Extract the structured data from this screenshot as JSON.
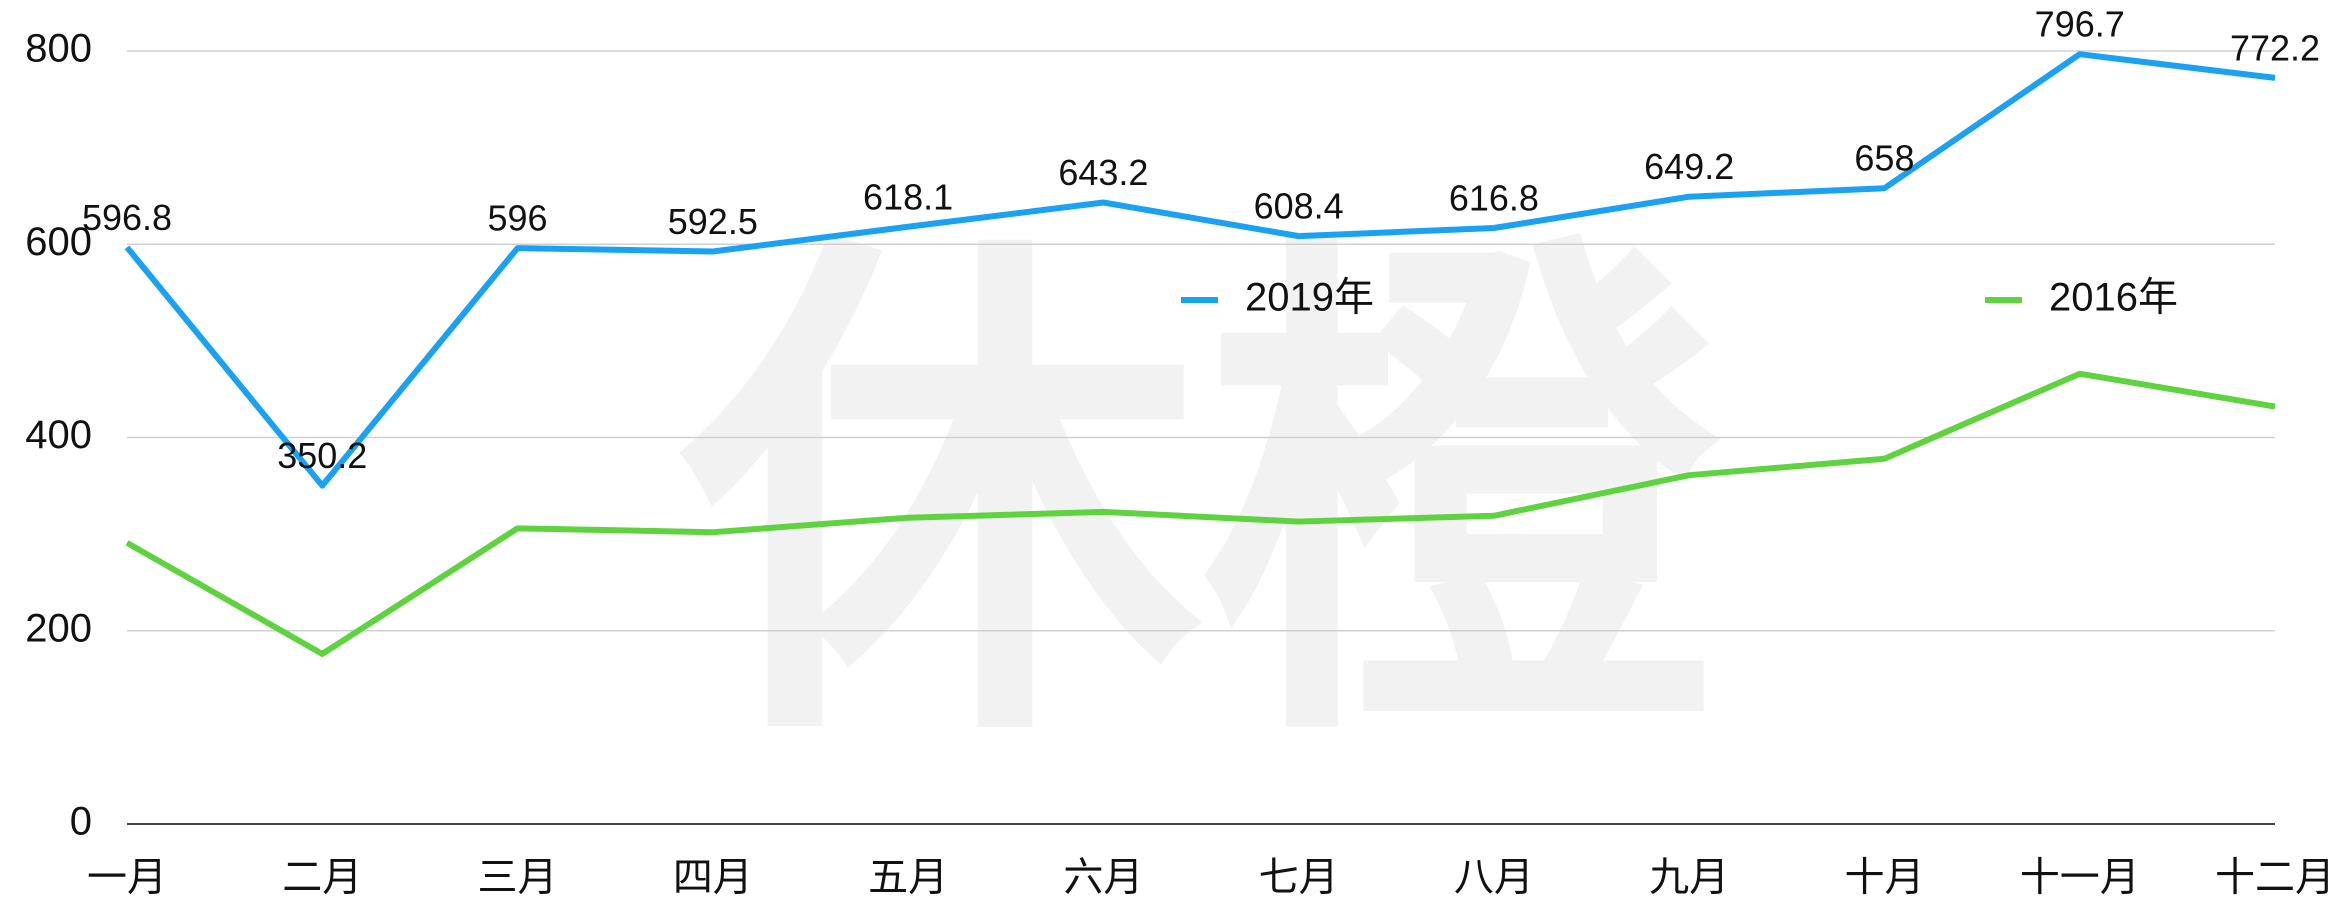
{
  "chart_data": {
    "type": "line",
    "watermark": "休橙",
    "categories": [
      "一月",
      "二月",
      "三月",
      "四月",
      "五月",
      "六月",
      "七月",
      "八月",
      "九月",
      "十月",
      "十一月",
      "十二月"
    ],
    "series": [
      {
        "name": "2019年",
        "color": "#1ba1f2",
        "values": [
          596.8,
          350.2,
          596,
          592.5,
          618.1,
          643.2,
          608.4,
          616.8,
          649.2,
          658,
          796.7,
          772.2
        ],
        "show_labels": true
      },
      {
        "name": "2016年",
        "color": "#5fd33f",
        "values": [
          291,
          176,
          306,
          302,
          317,
          323,
          313,
          319,
          361,
          378,
          466,
          432
        ],
        "show_labels": false
      }
    ],
    "ylim": [
      0,
      800
    ],
    "yticks": [
      0,
      200,
      400,
      600,
      800
    ],
    "grid": true
  }
}
